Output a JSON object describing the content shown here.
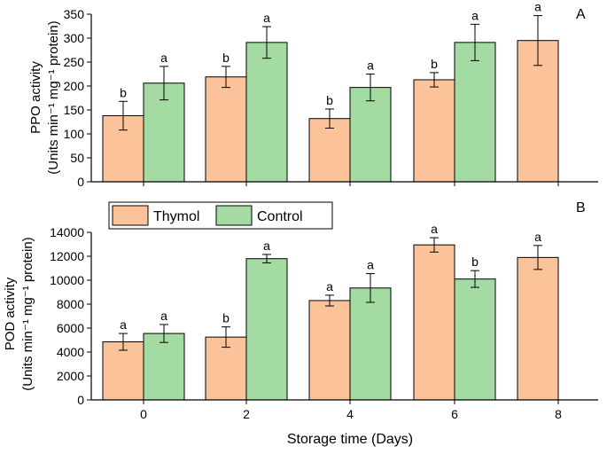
{
  "colors": {
    "thymol": "#fcc39a",
    "control": "#a3dba3",
    "axis": "#000000"
  },
  "legend": {
    "thymol": "Thymol",
    "control": "Control"
  },
  "xlabel": "Storage time (Days)",
  "chart_data": [
    {
      "type": "bar",
      "panel": "A",
      "ylabel_line1": "PPO activity",
      "ylabel_line2": "(Units min⁻¹ mg⁻¹ protein)",
      "categories": [
        "0",
        "2",
        "4",
        "6",
        "8"
      ],
      "ylim": [
        0,
        350
      ],
      "yticks": [
        0,
        50,
        100,
        150,
        200,
        250,
        300,
        350
      ],
      "series": [
        {
          "name": "Thymol",
          "values": [
            138,
            219,
            132,
            213,
            295
          ],
          "errors": [
            30,
            22,
            20,
            15,
            52
          ],
          "letters": [
            "b",
            "b",
            "b",
            "b",
            "a"
          ]
        },
        {
          "name": "Control",
          "values": [
            206,
            291,
            197,
            291,
            null
          ],
          "errors": [
            35,
            33,
            28,
            38,
            null
          ],
          "letters": [
            "a",
            "a",
            "a",
            "a",
            null
          ]
        }
      ]
    },
    {
      "type": "bar",
      "panel": "B",
      "ylabel_line1": "POD activity",
      "ylabel_line2": "(Units min⁻¹ mg⁻¹ protein)",
      "categories": [
        "0",
        "2",
        "4",
        "6",
        "8"
      ],
      "ylim": [
        0,
        14000
      ],
      "yticks": [
        0,
        2000,
        4000,
        6000,
        8000,
        10000,
        12000,
        14000
      ],
      "series": [
        {
          "name": "Thymol",
          "values": [
            4850,
            5250,
            8300,
            12950,
            11900
          ],
          "errors": [
            700,
            850,
            450,
            600,
            1000
          ],
          "letters": [
            "a",
            "b",
            "a",
            "a",
            "a"
          ]
        },
        {
          "name": "Control",
          "values": [
            5550,
            11800,
            9350,
            10100,
            null
          ],
          "errors": [
            750,
            350,
            1200,
            700,
            null
          ],
          "letters": [
            "a",
            "a",
            "a",
            "b",
            null
          ]
        }
      ]
    }
  ]
}
